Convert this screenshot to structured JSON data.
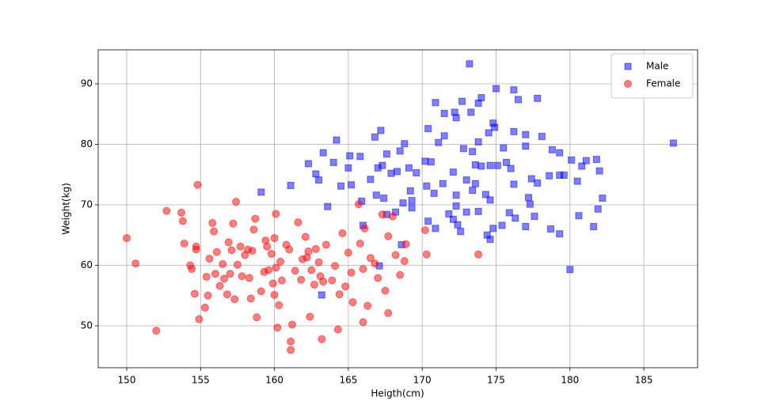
{
  "chart_data": {
    "type": "scatter",
    "x_label": "Heigth(cm)",
    "y_label": "Weight(kg)",
    "xlim": [
      148.07,
      188.64
    ],
    "xticks": [
      150,
      155,
      160,
      165,
      170,
      175,
      180,
      185
    ],
    "ylim": [
      43.07,
      95.62
    ],
    "yticks": [
      50,
      60,
      70,
      80,
      90
    ],
    "grid": true,
    "legend": "upper right",
    "alpha": 0.5,
    "series": [
      {
        "name": "Male",
        "color": "#0000ff",
        "marker": "square",
        "x": [
          187,
          180,
          173.2,
          175,
          176.2,
          177.8,
          176.5,
          174,
          173.8,
          170.9,
          172.7,
          171.5,
          172.2,
          174.8,
          173.3,
          176.2,
          177,
          178.1,
          175.5,
          177,
          178.8,
          179.3,
          180.1,
          181.1,
          181.8,
          182,
          180.8,
          179.3,
          179.6,
          178.6,
          177.8,
          177.4,
          180.5,
          182.2,
          181.9,
          180.6,
          181.6,
          179.3,
          178.7,
          177.6,
          177.3,
          177.2,
          176.2,
          175.9,
          176.3,
          175.4,
          174.8,
          174.6,
          174.4,
          177,
          173.8,
          173,
          172.6,
          172.4,
          172.1,
          171.8,
          170.9,
          170.4,
          169.3,
          169.3,
          168.6,
          167.1,
          166,
          165.9,
          163.6,
          163.2,
          159.1,
          161.1,
          162.3,
          162.8,
          163,
          163.3,
          164.2,
          164,
          164.5,
          165.2,
          165,
          165.1,
          165.8,
          166.8,
          167.2,
          167,
          167.6,
          168.5,
          168.8,
          169.6,
          170.2,
          170.4,
          171.5,
          172.3,
          171.1,
          172.8,
          173.8,
          174.5,
          173.4,
          173.6,
          174,
          174.6,
          175.1,
          175.7,
          176,
          174.9,
          166.5,
          166.9,
          167.4,
          167.6,
          168.2,
          168.7,
          169.2,
          170.3,
          170.8,
          171.4,
          172.3,
          172.1,
          172.3,
          173,
          173.6,
          173.4,
          174.3,
          174.6,
          168.3,
          169.1,
          167.3,
          170.6,
          167.9
        ],
        "values": [
          80.2,
          59.3,
          93.3,
          89.2,
          89,
          87.6,
          87.4,
          87.7,
          86.8,
          86.9,
          87.1,
          85.1,
          85.3,
          83.5,
          85.3,
          82.1,
          81.6,
          81.3,
          79.4,
          79.7,
          79.1,
          78.6,
          77.4,
          77.3,
          77.5,
          75.6,
          76.4,
          74.9,
          74.9,
          74.8,
          73.6,
          74.3,
          73.9,
          71.1,
          69.3,
          68.2,
          66.4,
          65.2,
          66,
          68.1,
          70.1,
          71.2,
          73.4,
          68.7,
          67.8,
          66.6,
          66.1,
          64.3,
          65,
          66.4,
          68.9,
          68.8,
          65.6,
          66.7,
          67.6,
          68.5,
          66.1,
          67.3,
          69.5,
          70.7,
          63.4,
          59.9,
          66.6,
          70.6,
          69.7,
          55.1,
          72.1,
          73.2,
          76.8,
          75.1,
          74.1,
          78.6,
          80.7,
          77,
          73.1,
          73.3,
          76.1,
          78.1,
          78,
          81.2,
          82.3,
          76.1,
          78.4,
          78.9,
          80.1,
          75.3,
          77.2,
          82.6,
          81.4,
          84.4,
          80.3,
          79.3,
          80.4,
          81.9,
          78.8,
          76.6,
          76.4,
          76.5,
          76.5,
          77,
          76,
          82.8,
          74.2,
          71.6,
          71.1,
          68.4,
          68.8,
          70.3,
          72.3,
          73.1,
          71.9,
          73.5,
          71.6,
          75.4,
          69.8,
          74.1,
          73.5,
          72.4,
          71.7,
          70.8,
          75.5,
          76.1,
          76.5,
          77.1,
          75.2
        ]
      },
      {
        "name": "Female",
        "color": "#ff0000",
        "marker": "circle",
        "x": [
          150,
          150.6,
          152,
          152.7,
          153.7,
          153.8,
          153.9,
          154.3,
          154.4,
          154.6,
          154.7,
          154.7,
          154.8,
          154.9,
          155.3,
          155.4,
          155.5,
          155.6,
          155.8,
          155.9,
          156,
          156.1,
          156.3,
          156.5,
          156.6,
          156.8,
          156.9,
          157,
          157.1,
          157.3,
          157.4,
          157.5,
          157.8,
          157.2,
          158,
          158.3,
          158.4,
          158.5,
          158.6,
          158.7,
          158.8,
          159.1,
          159.3,
          159.4,
          159.6,
          159.8,
          159.9,
          160,
          160,
          160.1,
          160.2,
          160.3,
          160.4,
          160.5,
          160.8,
          161,
          161.1,
          161.1,
          161.2,
          161.4,
          161.6,
          161.8,
          161.9,
          162.1,
          162.3,
          162.4,
          162.5,
          162.7,
          162.8,
          163,
          163.2,
          163.3,
          163.5,
          163.9,
          164.1,
          164.3,
          164.4,
          164.6,
          164.8,
          165,
          165.2,
          165.3,
          165.7,
          165.8,
          166,
          166.1,
          166.3,
          166,
          166.5,
          166.8,
          167,
          167.3,
          167.5,
          167.7,
          167.7,
          168,
          168.2,
          168.5,
          168.8,
          168.9,
          170.2,
          170.3,
          173.8,
          159.5,
          158.2,
          160.1,
          162.2,
          163.1,
          157.7
        ],
        "values": [
          64.5,
          60.3,
          49.2,
          69,
          68.7,
          67.3,
          63.6,
          60,
          59.4,
          55.3,
          63.1,
          62.6,
          73.3,
          51.1,
          53,
          58.1,
          55,
          61.1,
          67,
          65.6,
          58.6,
          62.2,
          56.6,
          60.2,
          57.8,
          55.2,
          63.8,
          58.6,
          62.5,
          54.4,
          70.5,
          60.1,
          58.2,
          66.9,
          61.7,
          57.9,
          54.5,
          62.4,
          65.9,
          67.7,
          51.4,
          55.7,
          58.9,
          64.1,
          59.2,
          61.9,
          57,
          55.1,
          64.5,
          68.5,
          49.7,
          53.4,
          60.6,
          57.5,
          63.4,
          62.6,
          47.4,
          46,
          50.2,
          59.1,
          67.1,
          57.6,
          61,
          64.7,
          62.3,
          51.5,
          59.2,
          56.8,
          62.7,
          60.5,
          47.8,
          57.3,
          63.4,
          57.5,
          59.9,
          49.4,
          55.2,
          65.3,
          56.5,
          62.1,
          58.8,
          53.9,
          70.1,
          63.6,
          59.4,
          66.1,
          53.3,
          50.6,
          61.2,
          60.3,
          57.9,
          68.4,
          55.8,
          64.8,
          52.1,
          68.1,
          61.7,
          58.4,
          60.7,
          63.5,
          65.8,
          61.8,
          61.8,
          63.1,
          62.6,
          59.6,
          61.3,
          58.2,
          63.1
        ]
      }
    ]
  }
}
